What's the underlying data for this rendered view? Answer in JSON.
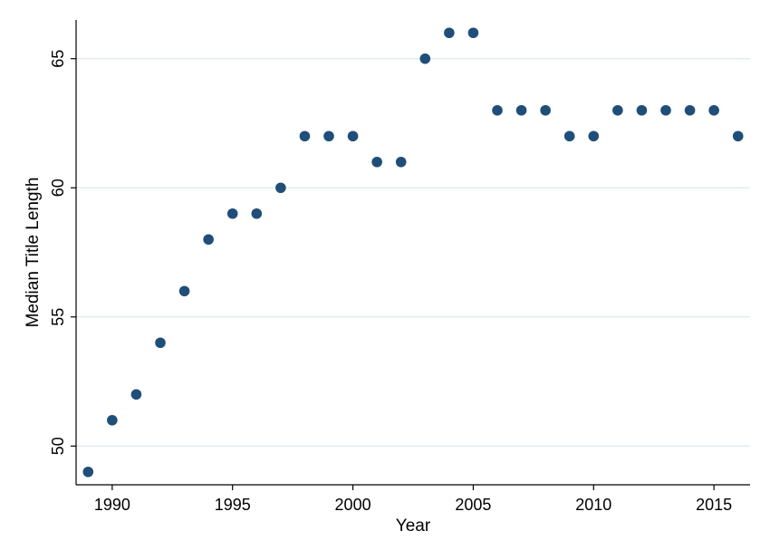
{
  "chart_data": {
    "type": "scatter",
    "title": "",
    "xlabel": "Year",
    "ylabel": "Median Title Length",
    "xlim": [
      1988.5,
      2016.5
    ],
    "ylim": [
      48.5,
      66.5
    ],
    "xticks": [
      1990,
      1995,
      2000,
      2005,
      2010,
      2015
    ],
    "yticks": [
      50,
      55,
      60,
      65
    ],
    "grid": true,
    "legend": "none",
    "marker_color": "#1f4e79",
    "grid_color": "#dde8ee",
    "series": [
      {
        "x": [
          1989,
          1990,
          1991,
          1992,
          1993,
          1994,
          1995,
          1996,
          1997,
          1998,
          1999,
          2000,
          2001,
          2002,
          2003,
          2004,
          2005,
          2006,
          2007,
          2008,
          2009,
          2010,
          2011,
          2012,
          2013,
          2014,
          2015,
          2016
        ],
        "y": [
          49,
          51,
          52,
          54,
          56,
          58,
          59,
          59,
          60,
          62,
          62,
          62,
          61,
          61,
          65,
          66,
          66,
          63,
          63,
          63,
          62,
          62,
          63,
          63,
          63,
          63,
          63,
          62
        ]
      }
    ]
  }
}
